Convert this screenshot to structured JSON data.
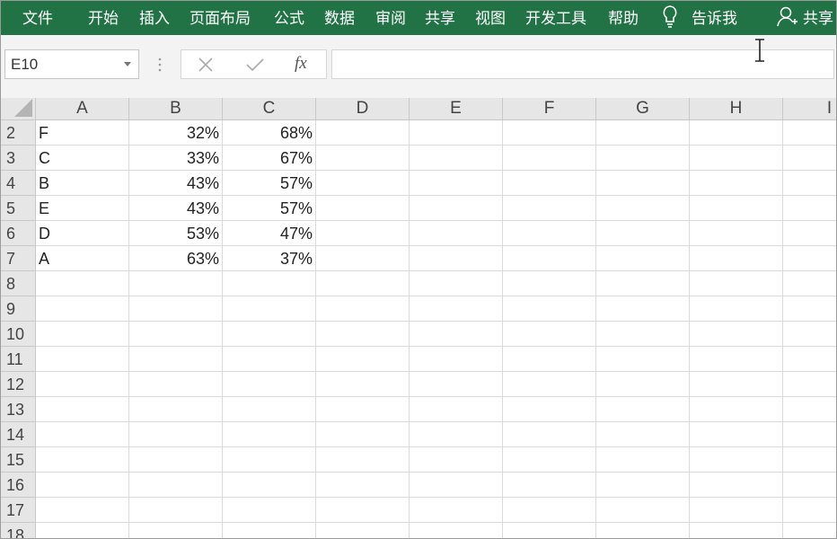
{
  "ribbon": {
    "tabs": [
      "文件",
      "开始",
      "插入",
      "页面布局",
      "公式",
      "数据",
      "审阅",
      "共享",
      "视图",
      "开发工具",
      "帮助"
    ],
    "tell_me": "告诉我",
    "share": "共享"
  },
  "formula_bar": {
    "name_box": "E10",
    "function_label": "fx"
  },
  "sheet": {
    "columns": [
      "A",
      "B",
      "C",
      "D",
      "E",
      "F",
      "G",
      "H",
      "I"
    ],
    "row_headers": [
      "2",
      "3",
      "4",
      "5",
      "6",
      "7",
      "8",
      "9",
      "10",
      "11",
      "12",
      "13",
      "14",
      "15",
      "16",
      "17",
      "18"
    ],
    "rows": [
      [
        "F",
        "32%",
        "68%"
      ],
      [
        "C",
        "33%",
        "67%"
      ],
      [
        "B",
        "43%",
        "57%"
      ],
      [
        "E",
        "43%",
        "57%"
      ],
      [
        "D",
        "53%",
        "47%"
      ],
      [
        "A",
        "63%",
        "37%"
      ]
    ]
  }
}
